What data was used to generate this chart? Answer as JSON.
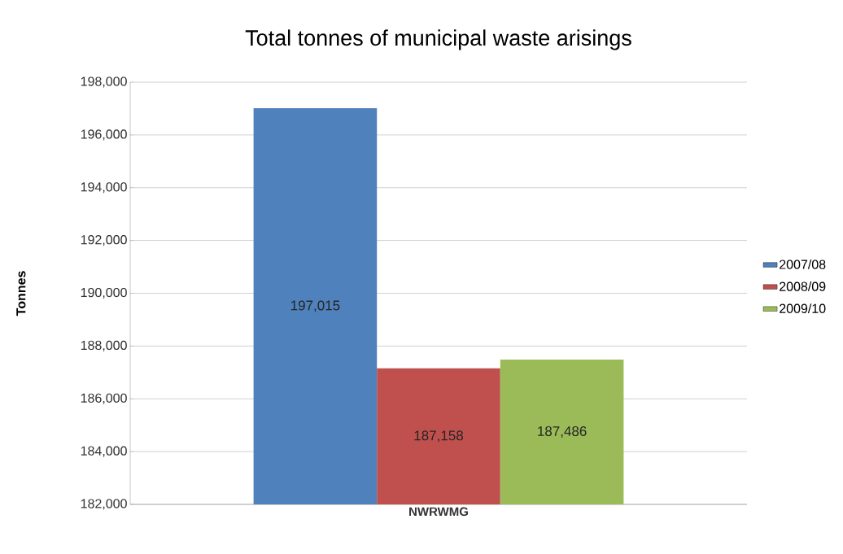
{
  "chart_data": {
    "type": "bar",
    "title": "Total tonnes of municipal waste arisings",
    "ylabel": "Tonnes",
    "categories": [
      "NWRWMG"
    ],
    "series": [
      {
        "name": "2007/08",
        "color": "#4f81bd",
        "values": [
          197015
        ],
        "value_labels": [
          "197,015"
        ]
      },
      {
        "name": "2008/09",
        "color": "#c0504d",
        "values": [
          187158
        ],
        "value_labels": [
          "187,158"
        ]
      },
      {
        "name": "2009/10",
        "color": "#9bbb59",
        "values": [
          187486
        ],
        "value_labels": [
          "187,486"
        ]
      }
    ],
    "ylim": [
      182000,
      198000
    ],
    "yticks": [
      {
        "value": 182000,
        "label": "182,000"
      },
      {
        "value": 184000,
        "label": "184,000"
      },
      {
        "value": 186000,
        "label": "186,000"
      },
      {
        "value": 188000,
        "label": "188,000"
      },
      {
        "value": 190000,
        "label": "190,000"
      },
      {
        "value": 192000,
        "label": "192,000"
      },
      {
        "value": 194000,
        "label": "194,000"
      },
      {
        "value": 196000,
        "label": "196,000"
      },
      {
        "value": 198000,
        "label": "198,000"
      }
    ],
    "grid": "y",
    "legend": "right"
  }
}
